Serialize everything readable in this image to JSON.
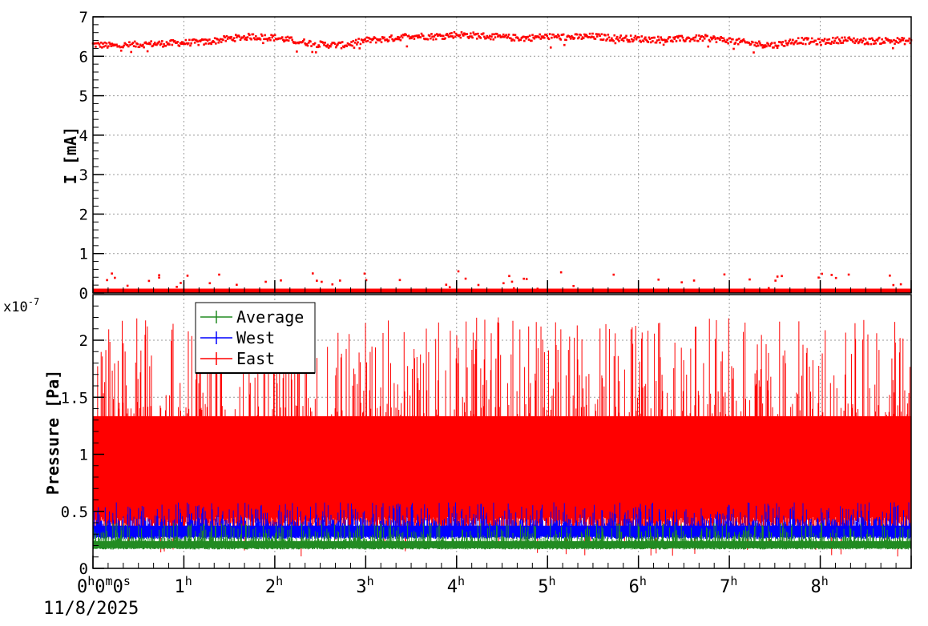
{
  "chart_data": [
    {
      "type": "scatter",
      "panel": "top",
      "ylabel": "I [mA]",
      "ylim": [
        0,
        7
      ],
      "yticks": [
        0,
        1,
        2,
        3,
        4,
        5,
        6,
        7
      ],
      "grid": true,
      "marker_color": "#ff0000",
      "xlim_hours": [
        0,
        9
      ],
      "series": [
        {
          "baseline": 0.05,
          "points": [
            [
              0.0,
              6.3
            ],
            [
              0.25,
              6.26
            ],
            [
              0.5,
              6.3
            ],
            [
              0.75,
              6.32
            ],
            [
              1.0,
              6.34
            ],
            [
              1.25,
              6.36
            ],
            [
              1.5,
              6.45
            ],
            [
              1.75,
              6.5
            ],
            [
              2.0,
              6.47
            ],
            [
              2.25,
              6.38
            ],
            [
              2.5,
              6.3
            ],
            [
              2.75,
              6.28
            ],
            [
              3.0,
              6.4
            ],
            [
              3.25,
              6.44
            ],
            [
              3.5,
              6.52
            ],
            [
              3.75,
              6.5
            ],
            [
              4.0,
              6.55
            ],
            [
              4.25,
              6.52
            ],
            [
              4.5,
              6.48
            ],
            [
              4.75,
              6.46
            ],
            [
              5.0,
              6.5
            ],
            [
              5.25,
              6.48
            ],
            [
              5.5,
              6.5
            ],
            [
              5.75,
              6.46
            ],
            [
              6.0,
              6.44
            ],
            [
              6.25,
              6.42
            ],
            [
              6.5,
              6.44
            ],
            [
              6.75,
              6.46
            ],
            [
              7.0,
              6.4
            ],
            [
              7.25,
              6.32
            ],
            [
              7.5,
              6.28
            ],
            [
              7.75,
              6.4
            ],
            [
              8.0,
              6.36
            ],
            [
              8.25,
              6.42
            ],
            [
              8.5,
              6.38
            ],
            [
              8.75,
              6.4
            ],
            [
              9.0,
              6.38
            ]
          ]
        }
      ]
    },
    {
      "type": "line",
      "panel": "bottom",
      "ylabel": "Pressure [Pa]",
      "y_multiplier": "x10",
      "y_multiplier_exp": "-7",
      "ylim": [
        0,
        2.4
      ],
      "yticks": [
        0,
        0.5,
        1,
        1.5,
        2
      ],
      "ytick_labels": [
        "0",
        "0.5",
        "1",
        "1.5",
        "2"
      ],
      "grid": true,
      "legend_position": "top-left",
      "xlim_hours": [
        0,
        9
      ],
      "x_tick_labels": [
        "0",
        "1",
        "2",
        "3",
        "4",
        "5",
        "6",
        "7",
        "8"
      ],
      "x_tick_sup": [
        "h",
        "h",
        "h",
        "h",
        "h",
        "h",
        "h",
        "h",
        "h"
      ],
      "x_origin_label_parts": [
        "0",
        "h",
        "0",
        "m",
        "0",
        "s"
      ],
      "date_label": "11/8/2025",
      "series": [
        {
          "name": "Average",
          "color": "#228b22",
          "low": 0.18,
          "high": 0.28,
          "spike_max": 0.4
        },
        {
          "name": "West",
          "color": "#0000ff",
          "low": 0.28,
          "high": 0.44,
          "spike_max": 0.58
        },
        {
          "name": "East",
          "color": "#ff0000",
          "low": 0.45,
          "high": 1.45,
          "spike_max": 2.2
        }
      ]
    }
  ]
}
